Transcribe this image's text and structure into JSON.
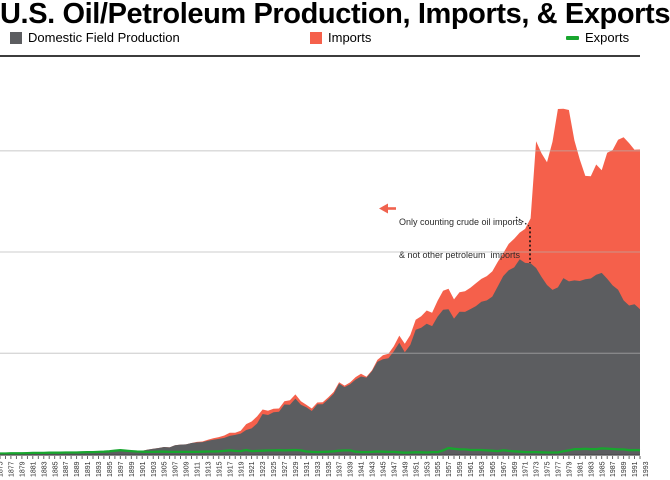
{
  "title": "U.S. Oil/Petroleum Production, Imports, & Exports",
  "legend": {
    "items": [
      {
        "label": "Domestic Field Production",
        "swatch": "square"
      },
      {
        "label": "Imports",
        "swatch": "square"
      },
      {
        "label": "Exports",
        "swatch": "dash"
      }
    ]
  },
  "annotation": {
    "line1": "Only counting crude oil imports",
    "line2": "& not other petroleum  imports",
    "arrow_icon": "left-arrow",
    "pointer_year": 1972
  },
  "colors": {
    "production": "#5c5d60",
    "imports": "#f5604b",
    "exports": "#18a62e",
    "gridline": "rgba(178,178,178,0.5)",
    "axis": "#4a4a4a",
    "plot_top_border": "#3c3c3c"
  },
  "chart_data": {
    "type": "area",
    "stacked": true,
    "x_start": 1875,
    "x_end": 1992,
    "x_tick_labels": [
      1875,
      1877,
      1879,
      1881,
      1883,
      1885,
      1887,
      1889,
      1891,
      1893,
      1895,
      1897,
      1899,
      1901,
      1903,
      1905,
      1907,
      1909,
      1911,
      1913,
      1915,
      1917,
      1919,
      1921,
      1923,
      1925,
      1927,
      1929,
      1931,
      1933,
      1935,
      1937,
      1939,
      1941,
      1943,
      1945,
      1947,
      1949,
      1951,
      1953,
      1955,
      1957,
      1959,
      1961,
      1963,
      1965,
      1967,
      1969,
      1971,
      1973,
      1975,
      1977,
      1979,
      1981,
      1983,
      1985,
      1987,
      1989,
      1991,
      1993
    ],
    "y_axis": {
      "labels_visible": false,
      "gridline_values_estimated": [
        5,
        10,
        15
      ],
      "ylim": [
        0,
        19.7
      ]
    },
    "grid": true,
    "legend_position": "top",
    "series": [
      {
        "name": "Domestic Field Production",
        "color": "#5c5d60",
        "render": "area",
        "values": [
          0.03,
          0.03,
          0.04,
          0.04,
          0.05,
          0.07,
          0.08,
          0.08,
          0.06,
          0.07,
          0.06,
          0.08,
          0.08,
          0.08,
          0.1,
          0.13,
          0.15,
          0.14,
          0.13,
          0.14,
          0.15,
          0.17,
          0.17,
          0.15,
          0.16,
          0.17,
          0.19,
          0.24,
          0.28,
          0.32,
          0.37,
          0.35,
          0.46,
          0.49,
          0.5,
          0.57,
          0.6,
          0.61,
          0.68,
          0.73,
          0.77,
          0.82,
          0.92,
          0.97,
          1.03,
          1.21,
          1.29,
          1.53,
          2.0,
          1.95,
          2.09,
          2.11,
          2.47,
          2.46,
          2.76,
          2.46,
          2.33,
          2.15,
          2.48,
          2.48,
          2.73,
          3.0,
          3.5,
          3.33,
          3.47,
          3.7,
          3.85,
          3.8,
          4.12,
          4.58,
          4.7,
          4.75,
          5.09,
          5.52,
          5.05,
          5.41,
          6.16,
          6.26,
          6.46,
          6.34,
          6.81,
          7.15,
          7.17,
          6.71,
          7.05,
          7.04,
          7.18,
          7.33,
          7.54,
          7.61,
          7.8,
          8.3,
          8.81,
          9.1,
          9.24,
          9.64,
          9.46,
          9.44,
          9.21,
          8.77,
          8.37,
          8.13,
          8.25,
          8.71,
          8.55,
          8.6,
          8.57,
          8.65,
          8.69,
          8.88,
          8.97,
          8.68,
          8.35,
          8.14,
          7.61,
          7.36,
          7.42,
          7.17
        ]
      },
      {
        "name": "Imports",
        "color": "#f5604b",
        "render": "area-stacked-on-production",
        "values": [
          0,
          0,
          0,
          0,
          0,
          0,
          0,
          0,
          0,
          0,
          0,
          0,
          0,
          0,
          0,
          0,
          0,
          0,
          0,
          0,
          0,
          0,
          0,
          0,
          0,
          0,
          0,
          0,
          0,
          0,
          0,
          0,
          0,
          0,
          0,
          0,
          0.02,
          0.03,
          0.05,
          0.07,
          0.09,
          0.12,
          0.15,
          0.1,
          0.14,
          0.29,
          0.34,
          0.35,
          0.22,
          0.21,
          0.17,
          0.16,
          0.16,
          0.22,
          0.21,
          0.17,
          0.13,
          0.12,
          0.09,
          0.1,
          0.09,
          0.09,
          0.07,
          0.07,
          0.09,
          0.12,
          0.14,
          0.04,
          0.04,
          0.09,
          0.2,
          0.23,
          0.26,
          0.35,
          0.42,
          0.49,
          0.49,
          0.57,
          0.65,
          0.66,
          0.78,
          0.94,
          1.02,
          0.95,
          0.96,
          1.02,
          1.05,
          1.13,
          1.13,
          1.2,
          1.24,
          1.22,
          1.13,
          1.3,
          1.41,
          1.32,
          1.68,
          2.22,
          6.26,
          6.11,
          6.06,
          7.31,
          8.81,
          8.36,
          8.46,
          6.91,
          6.0,
          5.11,
          5.05,
          5.44,
          5.07,
          6.22,
          6.68,
          7.4,
          8.06,
          8.02,
          7.63,
          7.89
        ]
      },
      {
        "name": "Exports",
        "color": "#18a62e",
        "render": "line",
        "values": [
          0.05,
          0.05,
          0.06,
          0.06,
          0.06,
          0.07,
          0.08,
          0.08,
          0.08,
          0.09,
          0.09,
          0.09,
          0.1,
          0.1,
          0.1,
          0.11,
          0.12,
          0.12,
          0.13,
          0.14,
          0.16,
          0.19,
          0.21,
          0.19,
          0.17,
          0.15,
          0.14,
          0.13,
          0.13,
          0.14,
          0.14,
          0.13,
          0.13,
          0.13,
          0.13,
          0.13,
          0.13,
          0.14,
          0.15,
          0.15,
          0.16,
          0.18,
          0.2,
          0.18,
          0.17,
          0.22,
          0.17,
          0.18,
          0.19,
          0.2,
          0.2,
          0.21,
          0.2,
          0.21,
          0.22,
          0.2,
          0.15,
          0.13,
          0.12,
          0.13,
          0.14,
          0.16,
          0.19,
          0.2,
          0.2,
          0.14,
          0.12,
          0.12,
          0.13,
          0.15,
          0.14,
          0.13,
          0.13,
          0.11,
          0.09,
          0.1,
          0.11,
          0.11,
          0.1,
          0.12,
          0.12,
          0.2,
          0.32,
          0.28,
          0.25,
          0.25,
          0.22,
          0.22,
          0.22,
          0.2,
          0.19,
          0.17,
          0.21,
          0.18,
          0.16,
          0.14,
          0.12,
          0.12,
          0.12,
          0.11,
          0.1,
          0.1,
          0.1,
          0.16,
          0.2,
          0.26,
          0.26,
          0.28,
          0.26,
          0.26,
          0.3,
          0.29,
          0.27,
          0.25,
          0.25,
          0.21,
          0.22,
          0.21
        ]
      }
    ]
  }
}
